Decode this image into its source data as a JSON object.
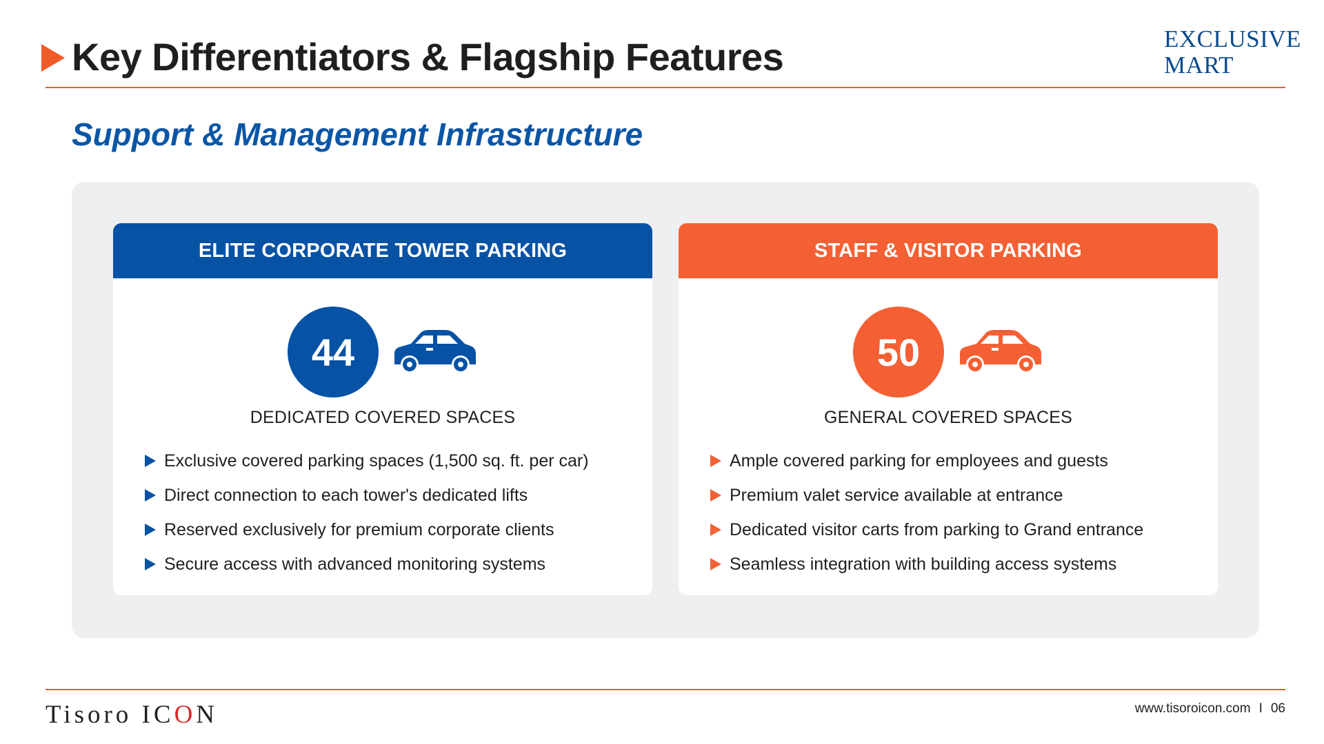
{
  "header": {
    "title": "Key Differentiators & Flagship Features",
    "brand_line1": "EXCLUSIVE",
    "brand_line2": "MART"
  },
  "subtitle": "Support & Management Infrastructure",
  "cards": [
    {
      "header": "ELITE CORPORATE TOWER PARKING",
      "count": "44",
      "label": "DEDICATED COVERED SPACES",
      "icon": "car-icon",
      "accent": "#0652a5",
      "bullets": [
        "Exclusive covered parking spaces (1,500 sq. ft. per car)",
        "Direct connection to each tower's dedicated lifts",
        "Reserved exclusively for premium corporate clients",
        "Secure access with advanced monitoring systems"
      ]
    },
    {
      "header": "STAFF & VISITOR PARKING",
      "count": "50",
      "label": "GENERAL COVERED SPACES",
      "icon": "car-icon",
      "accent": "#f46033",
      "bullets": [
        "Ample covered parking for employees and guests",
        "Premium valet service available at entrance",
        "Dedicated visitor carts from parking to Grand entrance",
        "Seamless integration with building access systems"
      ]
    }
  ],
  "footer": {
    "logo_part1": "Tisoro IC",
    "logo_part2": "O",
    "logo_part3": "N",
    "website": "www.tisoroicon.com",
    "separator": "I",
    "page_number": "06"
  }
}
